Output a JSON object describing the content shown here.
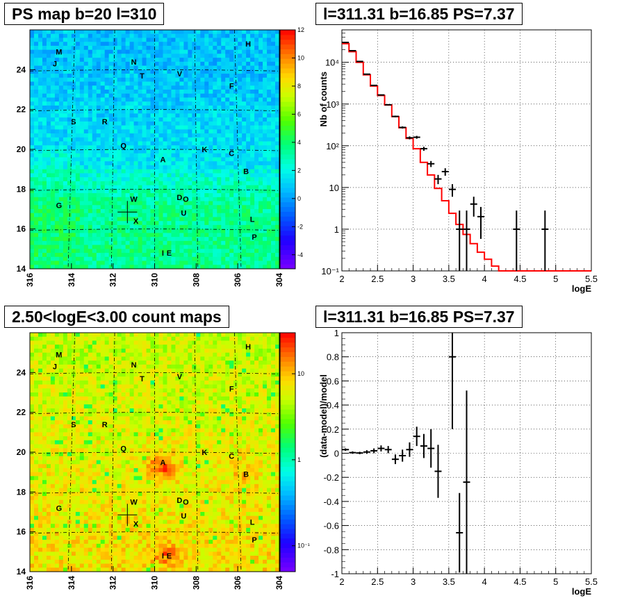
{
  "panels": {
    "top_left_title": "PS map b=20 l=310",
    "top_right_title": "l=311.31 b=16.85 PS=7.37",
    "bottom_left_title": "2.50<logE<3.00 count maps",
    "bottom_right_title": "l=311.31 b=16.85 PS=7.37"
  },
  "chart_data": [
    {
      "type": "heatmap",
      "title": "PS map b=20 l=310",
      "x_ticks": [
        "316",
        "314",
        "312",
        "310",
        "308",
        "306",
        "304"
      ],
      "y_ticks": [
        "14",
        "16",
        "18",
        "20",
        "22",
        "24"
      ],
      "xlim": [
        316,
        304
      ],
      "ylim": [
        14,
        26
      ],
      "color_scale": {
        "scale": "linear",
        "range": [
          -5,
          12
        ],
        "ticks": [
          "-4",
          "-2",
          "0",
          "2",
          "4",
          "6",
          "8",
          "10",
          "12"
        ]
      },
      "grid": true,
      "marker": {
        "l": 311.31,
        "b": 16.85
      },
      "sources": [
        {
          "label": "M",
          "l": 314.6,
          "b": 24.9
        },
        {
          "label": "J",
          "l": 314.8,
          "b": 24.3
        },
        {
          "label": "N",
          "l": 311.0,
          "b": 24.4
        },
        {
          "label": "H",
          "l": 305.5,
          "b": 25.3
        },
        {
          "label": "T",
          "l": 310.6,
          "b": 23.7
        },
        {
          "label": "V",
          "l": 308.8,
          "b": 23.8
        },
        {
          "label": "F",
          "l": 306.3,
          "b": 23.2
        },
        {
          "label": "S",
          "l": 313.9,
          "b": 21.4
        },
        {
          "label": "R",
          "l": 312.4,
          "b": 21.4
        },
        {
          "label": "Q",
          "l": 311.5,
          "b": 20.2
        },
        {
          "label": "K",
          "l": 307.6,
          "b": 20.0
        },
        {
          "label": "C",
          "l": 306.3,
          "b": 19.8
        },
        {
          "label": "A",
          "l": 309.6,
          "b": 19.5
        },
        {
          "label": "B",
          "l": 305.6,
          "b": 18.9
        },
        {
          "label": "D",
          "l": 308.8,
          "b": 17.6
        },
        {
          "label": "O",
          "l": 308.5,
          "b": 17.5
        },
        {
          "label": "W",
          "l": 311.0,
          "b": 17.5
        },
        {
          "label": "G",
          "l": 314.6,
          "b": 17.2
        },
        {
          "label": "U",
          "l": 308.6,
          "b": 16.8
        },
        {
          "label": "X",
          "l": 310.9,
          "b": 16.4
        },
        {
          "label": "L",
          "l": 305.3,
          "b": 16.5
        },
        {
          "label": "P",
          "l": 305.2,
          "b": 15.6
        },
        {
          "label": "I",
          "l": 309.6,
          "b": 14.8
        },
        {
          "label": "E",
          "l": 309.3,
          "b": 14.8
        }
      ]
    },
    {
      "type": "line",
      "title": "l=311.31 b=16.85 PS=7.37",
      "xlabel": "logE",
      "ylabel": "Nb of counts",
      "xlim": [
        2,
        5.5
      ],
      "ylim": [
        0.1,
        60000
      ],
      "y_scale": "log",
      "x_ticks": [
        "2",
        "2.5",
        "3",
        "3.5",
        "4",
        "4.5",
        "5",
        "5.5"
      ],
      "y_ticks": [
        "10⁻¹",
        "1",
        "10",
        "10²",
        "10³",
        "10⁴"
      ],
      "grid": true,
      "series": [
        {
          "kind": "model-histogram",
          "color": "#ff0000",
          "bin_edges": [
            2.0,
            2.1,
            2.2,
            2.3,
            2.4,
            2.5,
            2.6,
            2.7,
            2.8,
            2.9,
            3.0,
            3.1,
            3.2,
            3.3,
            3.4,
            3.5,
            3.6,
            3.7,
            3.8,
            3.9,
            4.0,
            4.1,
            4.2,
            4.3,
            4.4,
            4.5,
            4.6,
            4.7,
            4.8,
            4.9,
            5.0,
            5.1,
            5.2,
            5.3,
            5.4,
            5.5
          ],
          "values": [
            28000,
            18000,
            10000,
            5000,
            2700,
            1600,
            950,
            500,
            270,
            150,
            85,
            40,
            20,
            9.5,
            4.8,
            2.4,
            1.3,
            0.75,
            0.45,
            0.28,
            0.19,
            0.13,
            0.1,
            0.1,
            0.1,
            0.1,
            0.1,
            0.1,
            0.1,
            0.1,
            0.1,
            0.1,
            0.1,
            0.1,
            0.1
          ]
        },
        {
          "kind": "data-points",
          "color": "#000000",
          "x": [
            2.05,
            2.15,
            2.25,
            2.35,
            2.45,
            2.55,
            2.65,
            2.75,
            2.85,
            2.95,
            3.05,
            3.15,
            3.25,
            3.35,
            3.45,
            3.55,
            3.65,
            3.75,
            3.85,
            3.95,
            4.45,
            4.85
          ],
          "y": [
            30000,
            19000,
            10500,
            5200,
            2800,
            1650,
            960,
            505,
            275,
            155,
            160,
            85,
            37,
            16,
            24,
            9,
            1,
            1,
            4,
            2,
            1,
            1
          ]
        }
      ]
    },
    {
      "type": "heatmap",
      "title": "2.50<logE<3.00 count maps",
      "x_ticks": [
        "316",
        "314",
        "312",
        "310",
        "308",
        "306",
        "304"
      ],
      "y_ticks": [
        "14",
        "16",
        "18",
        "20",
        "22",
        "24"
      ],
      "xlim": [
        316,
        304
      ],
      "ylim": [
        14,
        26
      ],
      "color_scale": {
        "scale": "log",
        "range": [
          0.05,
          30
        ],
        "ticks": [
          "10⁻¹",
          "1",
          "10"
        ]
      },
      "grid": true,
      "marker": {
        "l": 311.31,
        "b": 16.85
      },
      "hotspots": [
        {
          "label": "A",
          "l": 309.6,
          "b": 19.3,
          "strength": 1.0
        },
        {
          "label": "E",
          "l": 309.4,
          "b": 14.9,
          "strength": 0.6
        },
        {
          "label": "B",
          "l": 305.7,
          "b": 18.9,
          "strength": 0.4
        }
      ]
    },
    {
      "type": "scatter",
      "title": "l=311.31 b=16.85 PS=7.37",
      "xlabel": "logE",
      "ylabel": "(data-model)/model",
      "xlim": [
        2,
        5.5
      ],
      "ylim": [
        -1,
        1
      ],
      "x_ticks": [
        "2",
        "2.5",
        "3",
        "3.5",
        "4",
        "4.5",
        "5",
        "5.5"
      ],
      "y_ticks": [
        "-1",
        "-0.8",
        "-0.6",
        "-0.4",
        "-0.2",
        "0",
        "0.2",
        "0.4",
        "0.6",
        "0.8",
        "1"
      ],
      "grid": true,
      "x": [
        2.05,
        2.15,
        2.25,
        2.35,
        2.45,
        2.55,
        2.65,
        2.75,
        2.85,
        2.95,
        3.05,
        3.15,
        3.25,
        3.35,
        3.55,
        3.65,
        3.75
      ],
      "y": [
        0.03,
        0.005,
        0.002,
        0.01,
        0.02,
        0.04,
        0.03,
        -0.05,
        -0.02,
        0.03,
        0.14,
        0.06,
        0.04,
        -0.15,
        0.8,
        -0.66,
        -0.24
      ],
      "errors": [
        0.01,
        0.01,
        0.01,
        0.015,
        0.02,
        0.025,
        0.03,
        0.04,
        0.05,
        0.06,
        0.08,
        0.1,
        0.16,
        0.22,
        0.6,
        0.33,
        0.76
      ]
    }
  ]
}
